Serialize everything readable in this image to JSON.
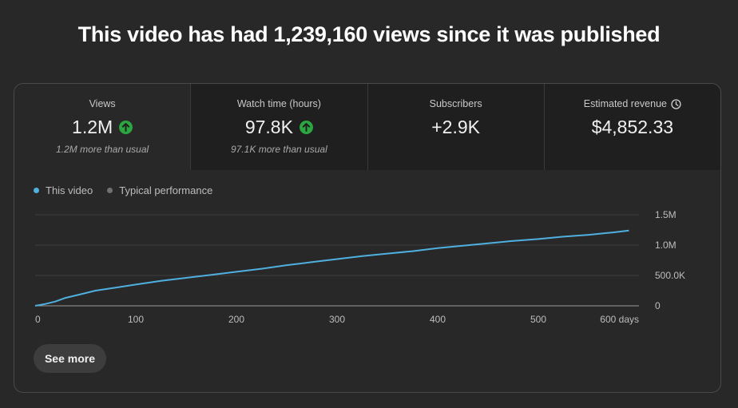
{
  "headline": "This video has had 1,239,160 views since it was published",
  "tabs": [
    {
      "title": "Views",
      "value": "1.2M",
      "sub": "1.2M more than usual",
      "trend": "up"
    },
    {
      "title": "Watch time (hours)",
      "value": "97.8K",
      "sub": "97.1K more than usual",
      "trend": "up"
    },
    {
      "title": "Subscribers",
      "value": "+2.9K",
      "sub": "",
      "trend": ""
    },
    {
      "title": "Estimated revenue",
      "value": "$4,852.33",
      "sub": "",
      "trend": "",
      "icon": "clock-icon"
    }
  ],
  "legend": [
    {
      "label": "This video",
      "color": "#4fb0e0"
    },
    {
      "label": "Typical performance",
      "color": "#717171"
    }
  ],
  "see_more_label": "See more",
  "chart_data": {
    "type": "line",
    "xlim": [
      0,
      600
    ],
    "ylim": [
      0,
      1500000
    ],
    "x_ticks": [
      {
        "value": 0,
        "label": "0"
      },
      {
        "value": 100,
        "label": "100"
      },
      {
        "value": 200,
        "label": "200"
      },
      {
        "value": 300,
        "label": "300"
      },
      {
        "value": 400,
        "label": "400"
      },
      {
        "value": 500,
        "label": "500"
      },
      {
        "value": 600,
        "label": "600 days"
      }
    ],
    "y_ticks": [
      {
        "value": 0,
        "label": "0"
      },
      {
        "value": 500000,
        "label": "500.0K"
      },
      {
        "value": 1000000,
        "label": "1.0M"
      },
      {
        "value": 1500000,
        "label": "1.5M"
      }
    ],
    "grid": true,
    "series": [
      {
        "name": "This video",
        "color": "#4fb0e0",
        "x": [
          0,
          10,
          20,
          30,
          45,
          60,
          80,
          100,
          125,
          150,
          175,
          200,
          225,
          250,
          275,
          300,
          325,
          350,
          375,
          400,
          425,
          450,
          475,
          500,
          525,
          550,
          575,
          590
        ],
        "y": [
          0,
          30000,
          70000,
          130000,
          190000,
          250000,
          300000,
          350000,
          410000,
          460000,
          510000,
          560000,
          610000,
          670000,
          720000,
          770000,
          820000,
          860000,
          900000,
          950000,
          990000,
          1030000,
          1070000,
          1100000,
          1140000,
          1170000,
          1210000,
          1239160
        ]
      }
    ]
  }
}
